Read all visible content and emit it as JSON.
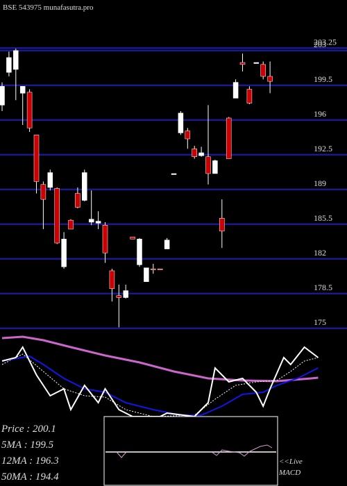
{
  "chart_data": [
    {
      "type": "candlestick",
      "title": "BSE 543975 munafasutra.pro",
      "up_color": "#ffffff",
      "down_color": "#cc0000",
      "grid_color": "#1a1a8c",
      "grid": true,
      "ylim": [
        174.5,
        208.1
      ],
      "yticks": [
        175,
        178.5,
        182,
        185.5,
        189,
        192.5,
        196,
        199.5,
        203,
        203.25
      ],
      "open": [
        197.5,
        200.8,
        201.1,
        198.7,
        198.8,
        194.5,
        189.5,
        189.2,
        189.1,
        181.2,
        185.9,
        188.6,
        187.9,
        185.7,
        185.6,
        185.4,
        180.8,
        178.3,
        178.1,
        184.2,
        181.4,
        179.7,
        181.0,
        181.0,
        183.0,
        190.5,
        194.7,
        194.9,
        193.1,
        192.4,
        192.3,
        190.6,
        186.1,
        196.2,
        198.2,
        201.8,
        199.1,
        201.7,
        201.6,
        200.4
      ],
      "high": [
        199.8,
        202.9,
        203.2,
        199.4,
        199.1,
        194.5,
        189.8,
        191.0,
        189.2,
        184.7,
        186.0,
        189.2,
        191.0,
        188.9,
        186.8,
        185.7,
        181.0,
        179.4,
        179.4,
        184.2,
        184.1,
        181.1,
        181.5,
        181.0,
        184.1,
        190.6,
        196.9,
        195.2,
        193.4,
        193.3,
        197.5,
        192.0,
        188.0,
        196.3,
        200.1,
        202.7,
        199.4,
        201.8,
        201.9,
        201.9
      ],
      "low": [
        196.9,
        200.4,
        198.0,
        195.5,
        194.8,
        188.6,
        185.0,
        188.9,
        183.5,
        181.0,
        185.0,
        187.1,
        187.8,
        185.4,
        185.0,
        181.6,
        177.7,
        175.1,
        178.0,
        184.0,
        181.2,
        179.7,
        180.5,
        180.9,
        183.0,
        190.5,
        194.5,
        193.1,
        192.1,
        192.3,
        189.5,
        190.6,
        183.1,
        192.1,
        198.2,
        200.9,
        197.6,
        201.7,
        200.1,
        198.7
      ],
      "close": [
        199.4,
        202.3,
        203.0,
        199.4,
        195.2,
        189.8,
        188.0,
        190.7,
        183.6,
        184.0,
        185.0,
        187.2,
        190.7,
        186.0,
        185.8,
        182.6,
        179.0,
        178.1,
        178.8,
        184.0,
        184.0,
        181.1,
        180.9,
        180.9,
        183.9,
        190.6,
        196.7,
        194.1,
        192.3,
        192.7,
        190.6,
        191.9,
        184.8,
        192.1,
        199.8,
        201.6,
        197.7,
        201.8,
        200.4,
        199.9
      ],
      "legend": [
        "Price   : 200.1",
        "5MA : 199.5",
        "12MA : 196.3",
        "50MA : 194.4"
      ]
    },
    {
      "type": "line",
      "ylim": [
        0,
        120
      ],
      "xlim": [
        0,
        49.7
      ],
      "series": [
        {
          "color": "#cc66cc",
          "width": 3,
          "x": [
            0,
            3,
            6,
            10,
            15,
            20,
            25,
            30,
            35,
            40,
            45,
            46
          ],
          "values": [
            113,
            115,
            110,
            100,
            88,
            78,
            65,
            55,
            52,
            51,
            55,
            56
          ]
        },
        {
          "color": "#ffffff",
          "width": 1,
          "dash": true,
          "x": [
            0,
            3,
            6,
            9,
            12,
            15,
            18,
            22,
            28,
            31,
            34,
            37,
            40,
            42,
            44,
            46
          ],
          "values": [
            75,
            90,
            65,
            40,
            30,
            28,
            10,
            0,
            2,
            25,
            45,
            50,
            52,
            65,
            80,
            85
          ]
        },
        {
          "color": "#1414e6",
          "width": 2,
          "x": [
            0,
            4,
            6,
            9,
            12,
            15,
            18,
            22,
            26,
            29,
            32,
            35,
            38,
            40,
            43,
            46
          ],
          "values": [
            80,
            87,
            75,
            55,
            40,
            35,
            20,
            10,
            2,
            2,
            15,
            32,
            35,
            45,
            55,
            70
          ]
        },
        {
          "color": "#ffffff",
          "width": 2,
          "x": [
            0,
            2,
            3,
            5,
            7,
            9,
            10,
            12,
            14,
            15,
            17,
            19,
            23,
            24,
            28,
            30,
            31,
            33,
            35,
            37,
            38,
            39,
            41,
            42,
            44,
            46
          ],
          "values": [
            80,
            85,
            100,
            60,
            30,
            40,
            10,
            45,
            20,
            40,
            10,
            0,
            0,
            5,
            0,
            20,
            70,
            50,
            55,
            35,
            15,
            40,
            85,
            75,
            100,
            85
          ]
        }
      ],
      "macd_label": [
        "<<Live",
        "MACD"
      ]
    }
  ]
}
